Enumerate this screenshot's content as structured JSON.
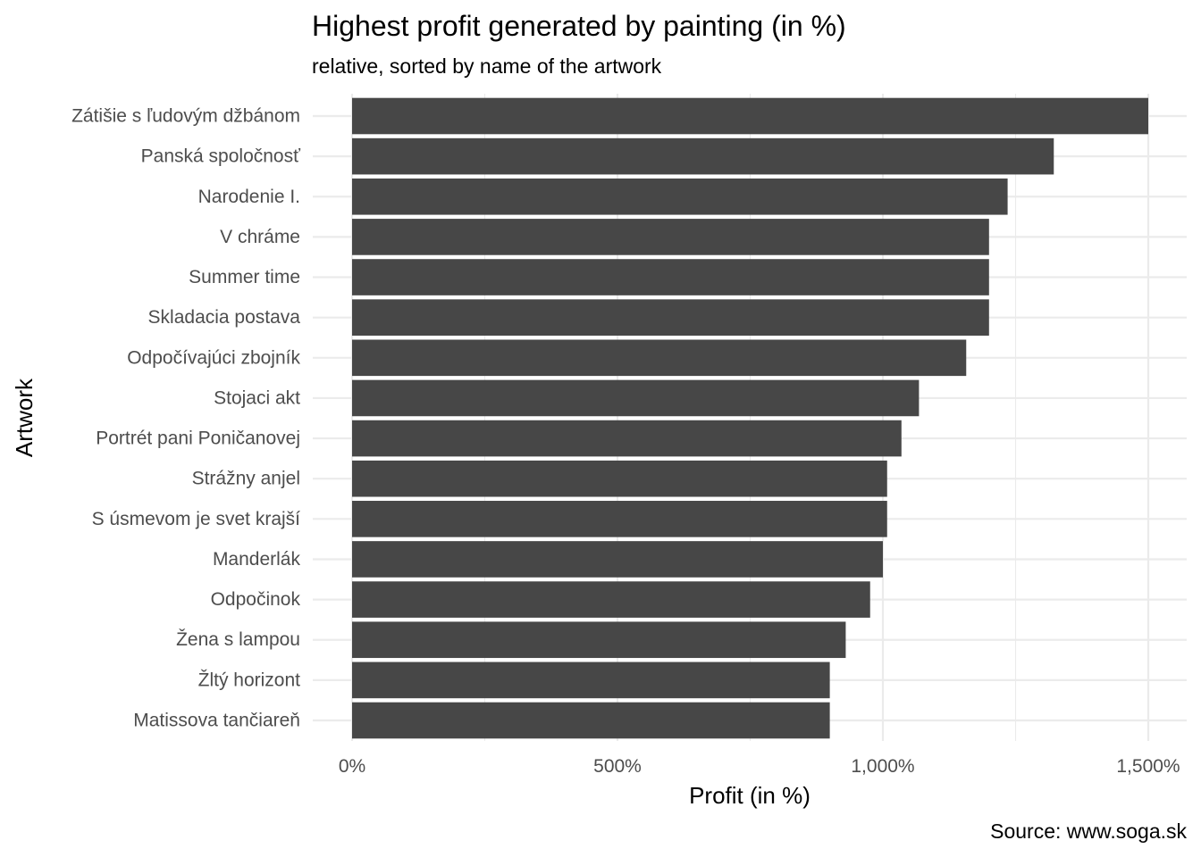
{
  "chart_data": {
    "type": "bar",
    "orientation": "horizontal",
    "title": "Highest profit generated by painting (in %)",
    "subtitle": "relative, sorted by name of the artwork",
    "xlabel": "Profit (in %)",
    "ylabel": "Artwork",
    "caption": "Source: www.soga.sk",
    "xlim": [
      0,
      1500
    ],
    "x_ticks": [
      0,
      500,
      1000,
      1500
    ],
    "x_tick_labels": [
      "0%",
      "500%",
      "1,000%",
      "1,500%"
    ],
    "grid": true,
    "bar_color": "#474747",
    "grid_color": "#ebebeb",
    "categories": [
      "Zátišie s ľudovým džbánom",
      "Panská spoločnosť",
      "Narodenie I.",
      "V chráme",
      "Summer time",
      "Skladacia postava",
      "Odpočívajúci zbojník",
      "Stojaci akt",
      "Portrét pani Poničanovej",
      "Strážny anjel",
      "S úsmevom je svet krajší",
      "Manderlák",
      "Odpočinok",
      "Žena s lampou",
      "Žltý horizont",
      "Matissova tančiareň"
    ],
    "values": [
      1500,
      1322,
      1235,
      1200,
      1200,
      1200,
      1157,
      1068,
      1035,
      1008,
      1008,
      1000,
      976,
      930,
      900,
      900
    ]
  }
}
